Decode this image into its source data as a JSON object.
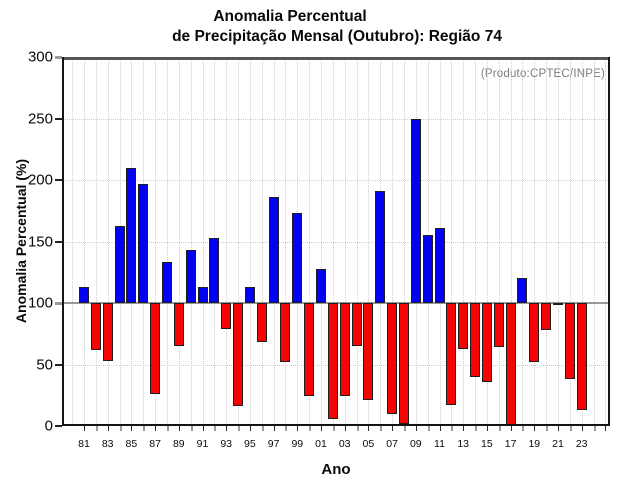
{
  "title": {
    "line1": "Anomalia Percentual",
    "line2": "de Precipitação Mensal (Outubro): Região 74"
  },
  "chart_data": {
    "type": "bar",
    "title": "Anomalia Percentual de Precipitação Mensal (Outubro): Região 74",
    "xlabel": "Ano",
    "ylabel": "Anomalia Percentual (%)",
    "annotation": "(Produto:CPTEC/INPE)",
    "ylim": [
      0,
      300
    ],
    "ytick_step": 50,
    "baseline": 100,
    "grid": "dotted",
    "legend_position": "none",
    "colors": {
      "above_baseline": "#0202f2",
      "below_baseline": "#f60303",
      "bar_outline": "#1f1f1f",
      "baseline_line": "#999999",
      "grid_line": "#cfcfcf",
      "annotation_text": "#7d7d7d"
    },
    "categories": [
      "81",
      "82",
      "83",
      "84",
      "85",
      "86",
      "87",
      "88",
      "89",
      "90",
      "91",
      "92",
      "93",
      "94",
      "95",
      "96",
      "97",
      "98",
      "99",
      "00",
      "01",
      "02",
      "03",
      "04",
      "05",
      "06",
      "07",
      "08",
      "09",
      "10",
      "11",
      "12",
      "13",
      "14",
      "15",
      "16",
      "17",
      "18",
      "19",
      "20",
      "21",
      "22",
      "23"
    ],
    "values": [
      113,
      62,
      53,
      163,
      210,
      197,
      26,
      133,
      65,
      143,
      113,
      153,
      79,
      16,
      113,
      68,
      186,
      52,
      173,
      24,
      128,
      6,
      24,
      65,
      21,
      191,
      10,
      2,
      250,
      155,
      161,
      17,
      63,
      40,
      36,
      64,
      1,
      120,
      52,
      78,
      99,
      38,
      13
    ]
  }
}
